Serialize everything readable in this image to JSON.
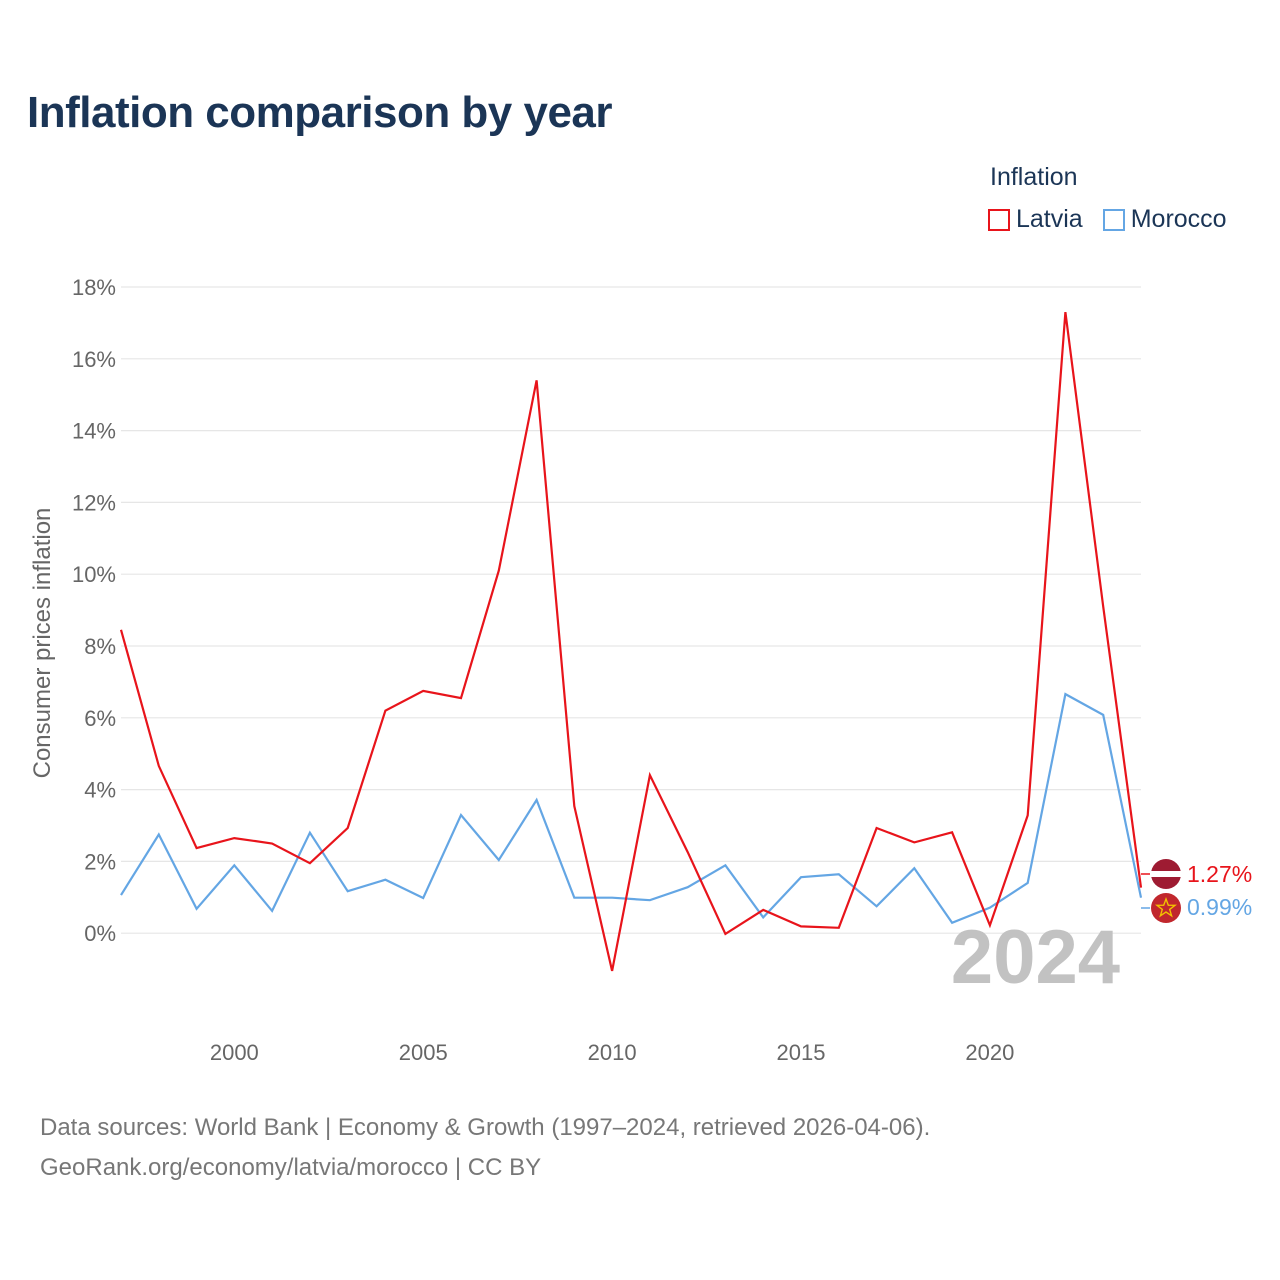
{
  "header": {
    "title": "Inflation comparison by year"
  },
  "legend": {
    "title": "Inflation",
    "items": [
      {
        "label": "Latvia",
        "color": "#e8141b"
      },
      {
        "label": "Morocco",
        "color": "#64a6e4"
      }
    ]
  },
  "chart_data": {
    "type": "line",
    "title": "Inflation comparison by year",
    "xlabel": "",
    "ylabel": "Consumer prices inflation",
    "xlim": [
      1997,
      2024
    ],
    "ylim": [
      -2,
      18
    ],
    "yticks": [
      0,
      2,
      4,
      6,
      8,
      10,
      12,
      14,
      16,
      18
    ],
    "ytick_labels": [
      "0%",
      "2%",
      "4%",
      "6%",
      "8%",
      "10%",
      "12%",
      "14%",
      "16%",
      "18%"
    ],
    "xticks": [
      2000,
      2005,
      2010,
      2015,
      2020
    ],
    "xtick_labels": [
      "2000",
      "2005",
      "2010",
      "2015",
      "2020"
    ],
    "grid": true,
    "legend_position": "top-right",
    "watermark_year": "2024",
    "x": [
      1997,
      1998,
      1999,
      2000,
      2001,
      2002,
      2003,
      2004,
      2005,
      2006,
      2007,
      2008,
      2009,
      2010,
      2011,
      2012,
      2013,
      2014,
      2015,
      2016,
      2017,
      2018,
      2019,
      2020,
      2021,
      2022,
      2023,
      2024
    ],
    "series": [
      {
        "name": "Latvia",
        "color": "#e8141b",
        "values": [
          8.45,
          4.66,
          2.37,
          2.65,
          2.5,
          1.95,
          2.93,
          6.2,
          6.75,
          6.55,
          10.1,
          15.4,
          3.54,
          -1.05,
          4.4,
          2.26,
          -0.02,
          0.65,
          0.19,
          0.15,
          2.93,
          2.53,
          2.81,
          0.22,
          3.28,
          17.3,
          9.1,
          1.27
        ],
        "end_label": "1.27%"
      },
      {
        "name": "Morocco",
        "color": "#64a6e4",
        "values": [
          1.06,
          2.75,
          0.68,
          1.89,
          0.62,
          2.8,
          1.17,
          1.49,
          0.98,
          3.29,
          2.04,
          3.71,
          0.99,
          0.99,
          0.92,
          1.28,
          1.89,
          0.44,
          1.56,
          1.64,
          0.75,
          1.81,
          0.29,
          0.71,
          1.4,
          6.66,
          6.08,
          0.99
        ],
        "end_label": "0.99%"
      }
    ]
  },
  "footer": {
    "line1": "Data sources: World Bank | Economy & Growth (1997–2024, retrieved 2026-04-06).",
    "line2": "GeoRank.org/economy/latvia/morocco | CC BY"
  }
}
